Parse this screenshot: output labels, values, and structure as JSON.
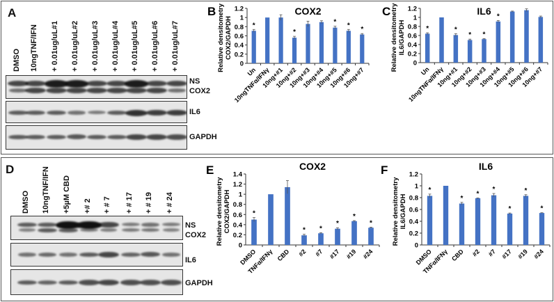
{
  "panels": {
    "A": {
      "letter": "A",
      "lanes": [
        "DMSO",
        "10ngTNF/IFN",
        "+ 0.01ug/uL#1",
        "+ 0.01ug/uL#2",
        "+ 0.01ug/uL#3",
        "+ 0.01ug/uL#4",
        "+ 0.01ug/uL#5",
        "+ 0.01ug/uL#6",
        "+ 0.01ug/uL#7"
      ],
      "blot_labels": {
        "ns": "NS",
        "cox2": "COX2",
        "il6": "IL6",
        "gapdh": "GAPDH"
      }
    },
    "D": {
      "letter": "D",
      "lanes": [
        "DMSO",
        "10ngTNF/IFN",
        "+5µM CBD",
        "+# 2",
        "+ # 7",
        "+ # 17",
        "+ # 19",
        "+ # 24"
      ],
      "blot_labels": {
        "ns": "NS",
        "cox2": "COX2",
        "il6": "IL6",
        "gapdh": "GAPDH"
      }
    }
  },
  "chart_data": [
    {
      "id": "B",
      "letter": "B",
      "type": "bar",
      "title": "COX2",
      "ylabel": [
        "Relative densitometry",
        "COX2/GAPDH"
      ],
      "ylim": [
        0,
        1.2
      ],
      "yticks": [
        "0",
        "0.2",
        "0.4",
        "0.6",
        "0.8",
        "1",
        "1.2"
      ],
      "categories": [
        "Un",
        "10ngTNFα/IFNγ",
        "10ng+#1",
        "10ng+#2",
        "10ng+#3",
        "10ng+#4",
        "10ng+#5",
        "10ng+#6",
        "10ng+#7"
      ],
      "values": [
        0.71,
        1.0,
        1.0,
        0.56,
        0.86,
        0.9,
        0.78,
        0.71,
        0.63
      ],
      "errors": [
        0.03,
        0,
        0.06,
        0.03,
        0.06,
        0.03,
        0.03,
        0.03,
        0.02
      ],
      "significant": [
        true,
        false,
        false,
        true,
        false,
        false,
        true,
        true,
        true
      ],
      "sig_marker": "*",
      "color": "#4472c4"
    },
    {
      "id": "C",
      "letter": "C",
      "type": "bar",
      "title": "IL6",
      "ylabel": [
        "Relative densitometry",
        "IL6/GAPDH"
      ],
      "ylim": [
        0,
        1.2
      ],
      "yticks": [
        "0",
        "0.2",
        "0.4",
        "0.6",
        "0.8",
        "1",
        "1.2"
      ],
      "categories": [
        "Un",
        "10ngTNFα/IFNγ",
        "10ng+#1",
        "10ng+#2",
        "10ng+#3",
        "10ng+#4",
        "10ng+#5",
        "10ng+#6",
        "10ng+#7"
      ],
      "values": [
        0.64,
        1.0,
        0.61,
        0.5,
        0.52,
        0.91,
        1.13,
        1.16,
        1.01
      ],
      "errors": [
        0.02,
        0,
        0.03,
        0.02,
        0.01,
        0.02,
        0.01,
        0.03,
        0.02
      ],
      "significant": [
        true,
        false,
        true,
        true,
        true,
        true,
        false,
        false,
        false
      ],
      "sig_marker": "*",
      "color": "#4472c4"
    },
    {
      "id": "E",
      "letter": "E",
      "type": "bar",
      "title": "COX2",
      "ylabel": [
        "Relative densitometry",
        "COX2/GAPDH"
      ],
      "ylim": [
        0,
        1.4
      ],
      "yticks": [
        "0",
        "0.2",
        "0.4",
        "0.6",
        "0.8",
        "1",
        "1.2",
        "1.4"
      ],
      "categories": [
        "DMSO",
        "TNFα/IFNγ",
        "CBD",
        "#2",
        "#7",
        "#17",
        "#19",
        "#24"
      ],
      "values": [
        0.5,
        1.0,
        1.14,
        0.19,
        0.23,
        0.32,
        0.47,
        0.34
      ],
      "errors": [
        0.04,
        0,
        0.13,
        0.02,
        0.01,
        0.02,
        0.01,
        0.01
      ],
      "significant": [
        true,
        false,
        false,
        true,
        true,
        true,
        true,
        true
      ],
      "sig_marker": "*",
      "color": "#4472c4"
    },
    {
      "id": "F",
      "letter": "F",
      "type": "bar",
      "title": "IL6",
      "ylabel": [
        "Relative densitometry",
        "IL6/GAPDH"
      ],
      "ylim": [
        0,
        1.2
      ],
      "yticks": [
        "0",
        "0.2",
        "0.4",
        "0.6",
        "0.8",
        "1",
        "1.2"
      ],
      "categories": [
        "DMSO",
        "TNFα/IFNγ",
        "CBD",
        "#2",
        "#7",
        "#17",
        "#19",
        "#24"
      ],
      "values": [
        0.83,
        1.0,
        0.7,
        0.79,
        0.84,
        0.53,
        0.83,
        0.54
      ],
      "errors": [
        0.03,
        0,
        0.02,
        0.005,
        0.03,
        0.01,
        0.02,
        0.005
      ],
      "significant": [
        true,
        false,
        true,
        true,
        true,
        true,
        true,
        true
      ],
      "sig_marker": "*",
      "color": "#4472c4"
    }
  ]
}
